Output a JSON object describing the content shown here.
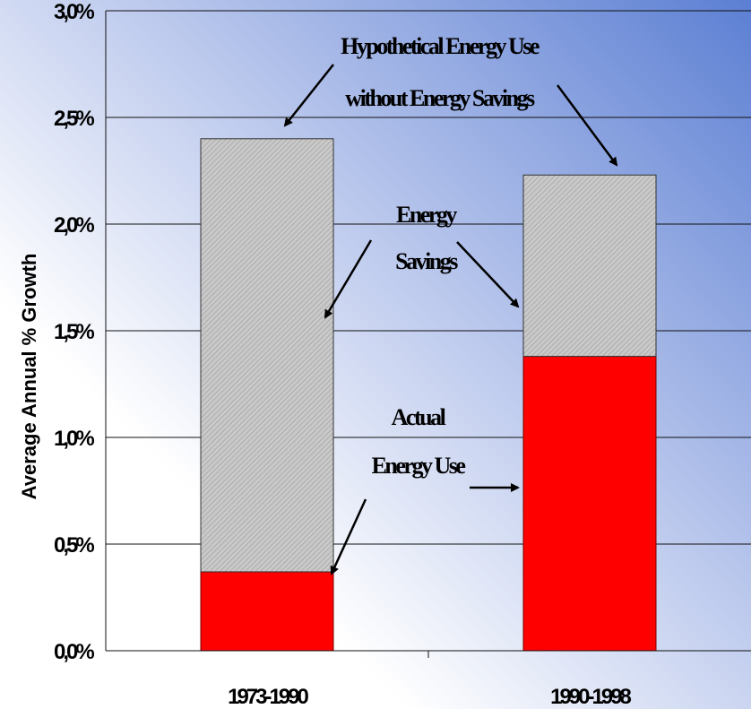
{
  "chart_data": {
    "type": "bar",
    "stacked": true,
    "categories": [
      "1973-1990",
      "1990-1998"
    ],
    "series": [
      {
        "name": "Actual Energy Use",
        "values": [
          0.0037,
          0.0138
        ],
        "color": "#ff0000"
      },
      {
        "name": "Energy Savings",
        "values": [
          0.0203,
          0.0085
        ],
        "color": "#c0c0c0"
      }
    ],
    "totals_note": "Hypothetical Energy Use without Energy Savings",
    "ylabel": "Average Annual % Growth",
    "xlabel": "",
    "ylim": [
      0,
      0.03
    ],
    "y_ticks": [
      "0,0%",
      "0,5%",
      "1,0%",
      "1,5%",
      "2,0%",
      "2,5%",
      "3,0%"
    ],
    "grid": true,
    "annotations": {
      "hypothetical": [
        "Hypothetical Energy Use",
        "without Energy Savings"
      ],
      "savings": [
        "Energy",
        "Savings"
      ],
      "actual": [
        "Actual",
        "Energy Use"
      ]
    }
  }
}
